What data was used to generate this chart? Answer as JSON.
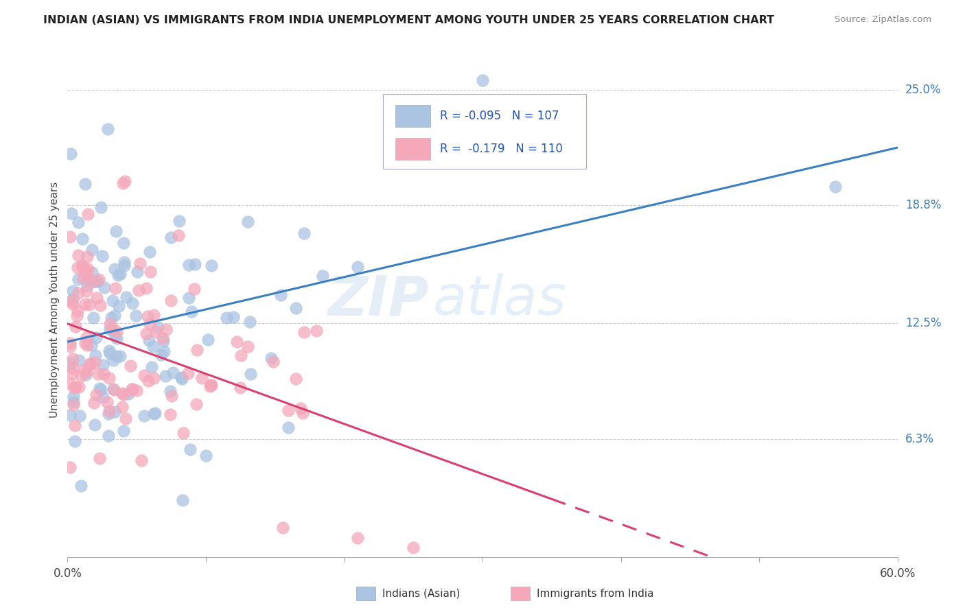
{
  "title": "INDIAN (ASIAN) VS IMMIGRANTS FROM INDIA UNEMPLOYMENT AMONG YOUTH UNDER 25 YEARS CORRELATION CHART",
  "source": "Source: ZipAtlas.com",
  "ylabel": "Unemployment Among Youth under 25 years",
  "ytick_labels": [
    "25.0%",
    "18.8%",
    "12.5%",
    "6.3%"
  ],
  "ytick_values": [
    0.25,
    0.188,
    0.125,
    0.063
  ],
  "legend_label1": "Indians (Asian)",
  "legend_label2": "Immigrants from India",
  "R1": "-0.095",
  "N1": "107",
  "R2": "-0.179",
  "N2": "110",
  "color_blue": "#aac4e2",
  "color_pink": "#f4a8ba",
  "line_color_blue": "#3a7fc1",
  "line_color_pink": "#d94070",
  "background_color": "#ffffff",
  "watermark_zip": "ZIP",
  "watermark_atlas": "atlas",
  "xlim": [
    0.0,
    0.6
  ],
  "ylim": [
    0.0,
    0.275
  ]
}
